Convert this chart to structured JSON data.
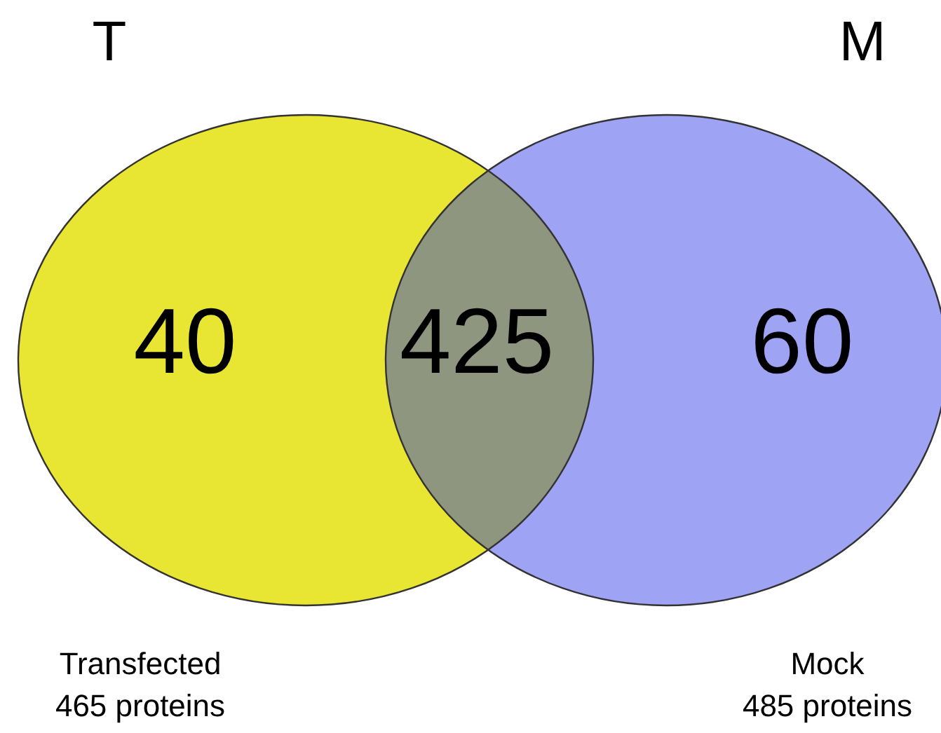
{
  "chart_data": {
    "type": "other",
    "categories": [
      null,
      null,
      null
    ],
    "values": [
      40,
      425,
      60
    ],
    "data_labels": true,
    "colors": [
      "#e8e633",
      "#8f9680",
      "#9ea3f4"
    ],
    "annotations": [
      "T",
      "M",
      "Transfected\n465 proteins",
      "Mock\n485 proteins"
    ]
  }
}
